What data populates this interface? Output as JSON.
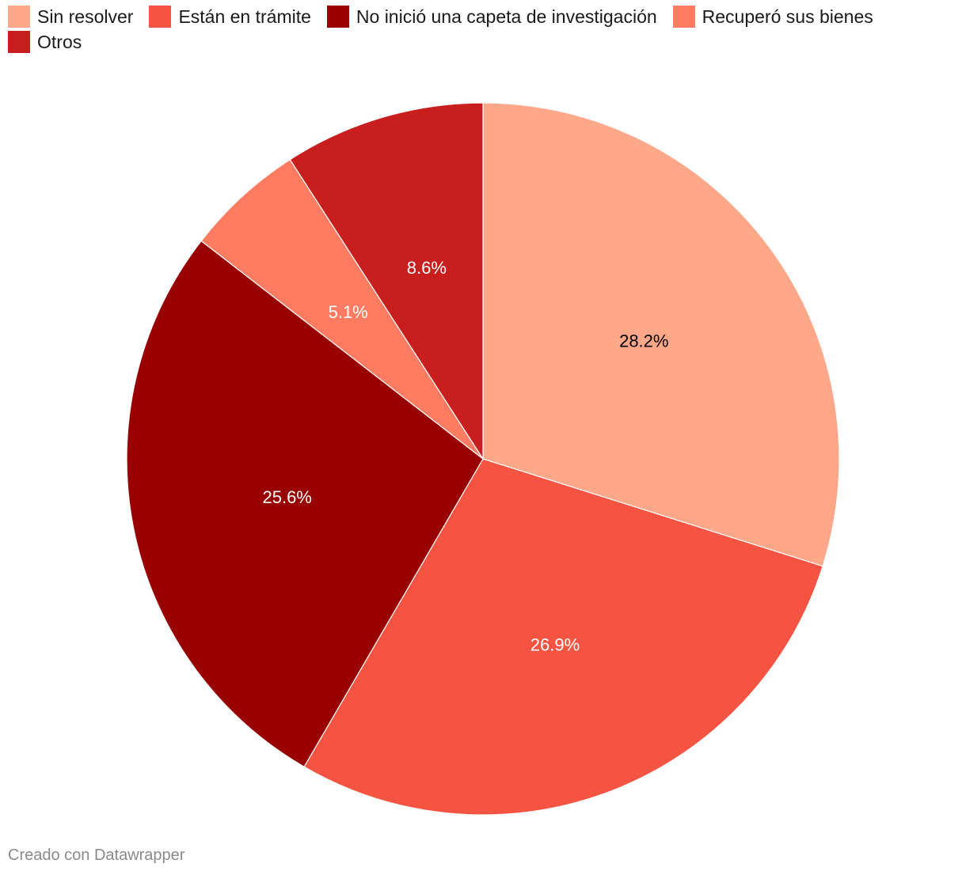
{
  "chart_data": {
    "type": "pie",
    "legend_placement": "top-left",
    "slices": [
      {
        "name": "Sin resolver",
        "value": 28.2,
        "label": "28.2%",
        "color": "#FFA789",
        "label_color": "#000000"
      },
      {
        "name": "Están en trámite",
        "value": 26.9,
        "label": "26.9%",
        "color": "#F65442",
        "label_color": "#ffffff"
      },
      {
        "name": "No inició una capeta de investigación",
        "value": 25.6,
        "label": "25.6%",
        "color": "#990000",
        "label_color": "#ffffff"
      },
      {
        "name": "Recuperó sus bienes",
        "value": 5.1,
        "label": "5.1%",
        "color": "#FF7B62",
        "label_color": "#ffffff"
      },
      {
        "name": "Otros",
        "value": 8.6,
        "label": "8.6%",
        "color": "#C81E1E",
        "label_color": "#ffffff"
      }
    ]
  },
  "footer": {
    "credit": "Creado con Datawrapper"
  }
}
